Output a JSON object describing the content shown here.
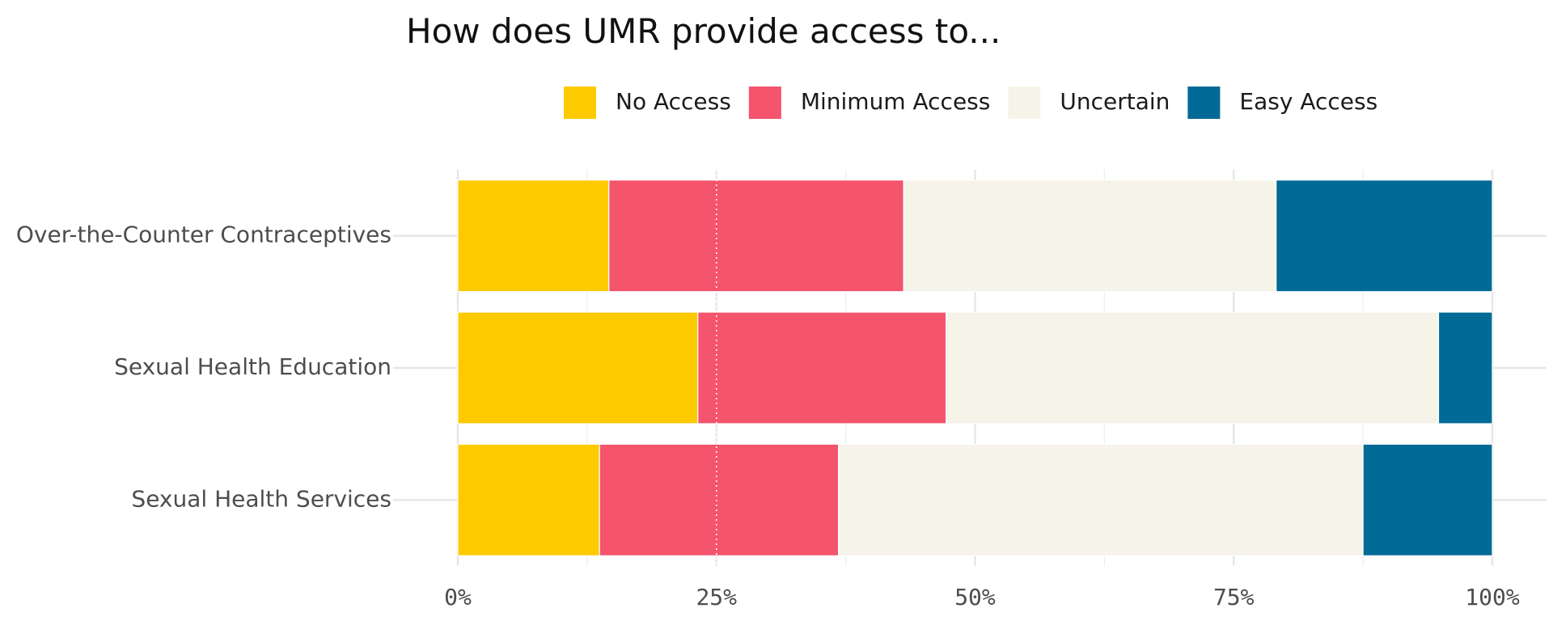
{
  "chart_data": {
    "type": "bar",
    "orientation": "horizontal",
    "stacked": true,
    "normalized": true,
    "title": "How does UMR provide access to...",
    "xlabel": "",
    "ylabel": "",
    "xlim": [
      0,
      100
    ],
    "x_ticks": [
      "0%",
      "25%",
      "50%",
      "75%",
      "100%"
    ],
    "x_tick_values": [
      0,
      25,
      50,
      75,
      100
    ],
    "categories": [
      "Over-the-Counter Contraceptives",
      "Sexual Health Education",
      "Sexual Health Services"
    ],
    "series": [
      {
        "name": "No Access",
        "color": "#FDCA00",
        "values": [
          14.6,
          23.2,
          13.7
        ]
      },
      {
        "name": "Minimum Access",
        "color": "#F4546C",
        "values": [
          28.5,
          24.0,
          23.1
        ]
      },
      {
        "name": "Uncertain",
        "color": "#F6F4E9",
        "values": [
          36.0,
          47.6,
          50.7
        ]
      },
      {
        "name": "Easy Access",
        "color": "#026A96",
        "values": [
          20.9,
          5.2,
          12.5
        ]
      }
    ],
    "legend_position": "top",
    "grid": true
  }
}
